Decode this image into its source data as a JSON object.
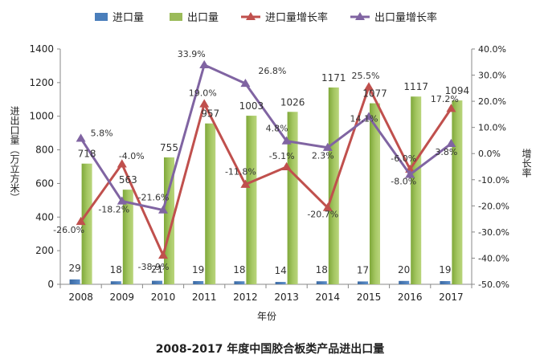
{
  "chart_data": {
    "type": "bar",
    "caption": "2008-2017 年度中国胶合板类产品进出口量",
    "categories": [
      "2008",
      "2009",
      "2010",
      "2011",
      "2012",
      "2013",
      "2014",
      "2015",
      "2016",
      "2017"
    ],
    "xlabel": "年份",
    "ylabel_left": "进出口量（万立方米）",
    "ylabel_right": "增长率",
    "ylim_left": [
      0,
      1400
    ],
    "yticks_left": [
      "0",
      "200",
      "400",
      "600",
      "800",
      "1000",
      "1200",
      "1400"
    ],
    "ylim_right": [
      -50,
      40
    ],
    "yticks_right": [
      "-50.0%",
      "-40.0%",
      "-30.0%",
      "-20.0%",
      "-10.0%",
      "0.0%",
      "10.0%",
      "20.0%",
      "30.0%",
      "40.0%"
    ],
    "legend_position": "top",
    "legend": [
      "进口量",
      "出口量",
      "进口量增长率",
      "出口量增长率"
    ],
    "series": [
      {
        "name": "进口量",
        "type": "bar",
        "axis": "left",
        "color": "#4a7ebb",
        "values": [
          29,
          18,
          21,
          19,
          18,
          14,
          18,
          17,
          20,
          19
        ],
        "labels": [
          "29",
          "18",
          "21",
          "19",
          "18",
          "14",
          "18",
          "17",
          "20",
          "19"
        ]
      },
      {
        "name": "出口量",
        "type": "bar",
        "axis": "left",
        "color": "#9bbb59",
        "values": [
          718,
          563,
          755,
          957,
          1003,
          1026,
          1171,
          1077,
          1117,
          1094
        ],
        "labels": [
          "718",
          "563",
          "755",
          "957",
          "1003",
          "1026",
          "1171",
          "1077",
          "1117",
          "1094"
        ]
      },
      {
        "name": "进口量增长率",
        "type": "line",
        "axis": "right",
        "color": "#c0504d",
        "values": [
          -26.0,
          -4.0,
          -38.9,
          19.0,
          -11.8,
          -5.1,
          -20.7,
          25.5,
          -6.0,
          17.2
        ],
        "labels": [
          "-26.0%",
          "-4.0%",
          "-38.9%",
          "19.0%",
          "-11.8%",
          "-5.1%",
          "-20.7%",
          "25.5%",
          "-6.0%",
          "17.2%"
        ]
      },
      {
        "name": "出口量增长率",
        "type": "line",
        "axis": "right",
        "color": "#8064a2",
        "values": [
          5.8,
          -18.2,
          -21.6,
          33.9,
          26.8,
          4.8,
          2.3,
          14.1,
          -8.0,
          3.8
        ],
        "labels": [
          "5.8%",
          "-18.2%",
          "-21.6%",
          "33.9%",
          "26.8%",
          "4.8%",
          "2.3%",
          "14.1%",
          "-8.0%",
          "3.8%"
        ]
      }
    ]
  }
}
